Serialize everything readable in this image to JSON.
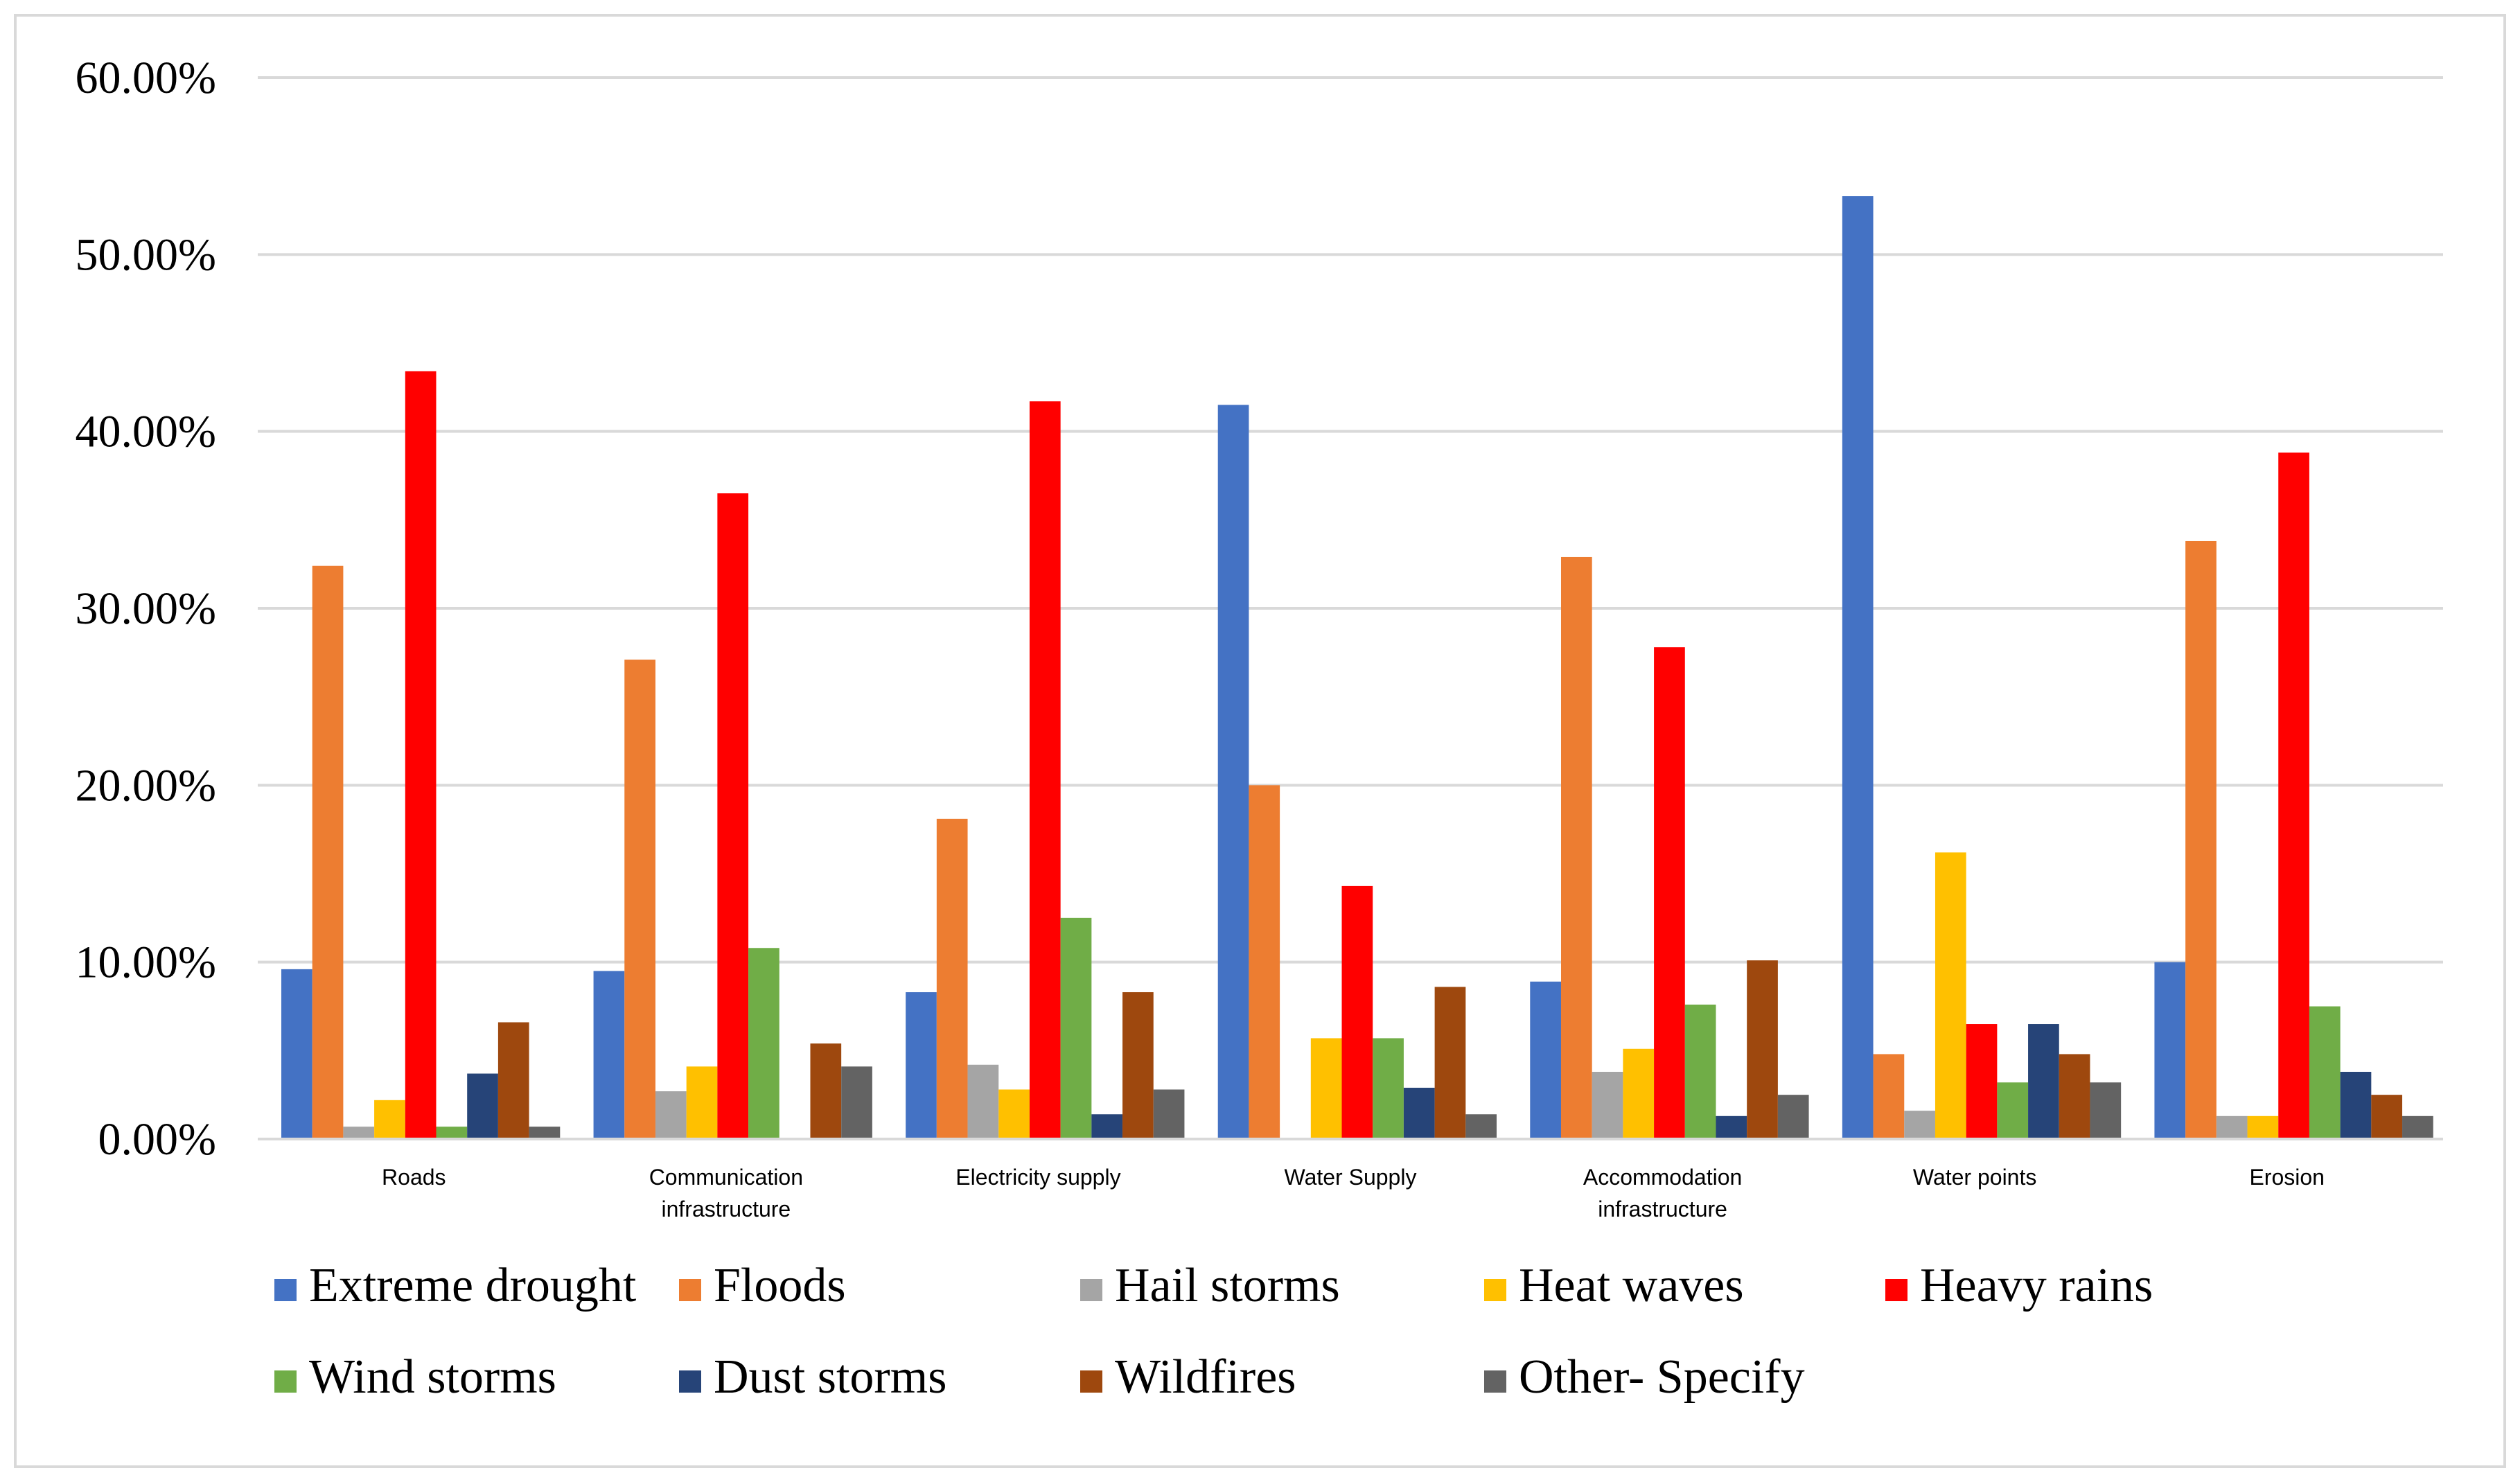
{
  "chart_data": {
    "type": "bar",
    "title": "",
    "xlabel": "",
    "ylabel": "",
    "ylim": [
      0,
      60
    ],
    "yticks": [
      "0.00%",
      "10.00%",
      "20.00%",
      "30.00%",
      "40.00%",
      "50.00%",
      "60.00%"
    ],
    "categories": [
      [
        "Roads"
      ],
      [
        "Communication",
        "infrastructure"
      ],
      [
        "Electricity supply"
      ],
      [
        "Water Supply"
      ],
      [
        "Accommodation",
        "infrastructure"
      ],
      [
        "Water points"
      ],
      [
        "Erosion"
      ]
    ],
    "legend_position": "bottom",
    "series": [
      {
        "name": "Extreme drought",
        "color": "#4472C4",
        "values": [
          9.6,
          9.5,
          8.3,
          41.5,
          8.9,
          53.3,
          10.0
        ]
      },
      {
        "name": "Floods",
        "color": "#ED7D31",
        "values": [
          32.4,
          27.1,
          18.1,
          20.0,
          32.9,
          4.8,
          33.8
        ]
      },
      {
        "name": "Hail storms",
        "color": "#A5A5A5",
        "values": [
          0.7,
          2.7,
          4.2,
          0.0,
          3.8,
          1.6,
          1.3
        ]
      },
      {
        "name": "Heat waves",
        "color": "#FFC000",
        "values": [
          2.2,
          4.1,
          2.8,
          5.7,
          5.1,
          16.2,
          1.3
        ]
      },
      {
        "name": "Heavy rains",
        "color": "#FF0000",
        "values": [
          43.4,
          36.5,
          41.7,
          14.3,
          27.8,
          6.5,
          38.8
        ]
      },
      {
        "name": "Wind storms",
        "color": "#70AD47",
        "values": [
          0.7,
          10.8,
          12.5,
          5.7,
          7.6,
          3.2,
          7.5
        ]
      },
      {
        "name": "Dust storms",
        "color": "#264478",
        "values": [
          3.7,
          0.0,
          1.4,
          2.9,
          1.3,
          6.5,
          3.8
        ]
      },
      {
        "name": "Wildfires",
        "color": "#9E480E",
        "values": [
          6.6,
          5.4,
          8.3,
          8.6,
          10.1,
          4.8,
          2.5
        ]
      },
      {
        "name": "Other- Specify",
        "color": "#636363",
        "values": [
          0.7,
          4.1,
          2.8,
          1.4,
          2.5,
          3.2,
          1.3
        ]
      }
    ]
  }
}
